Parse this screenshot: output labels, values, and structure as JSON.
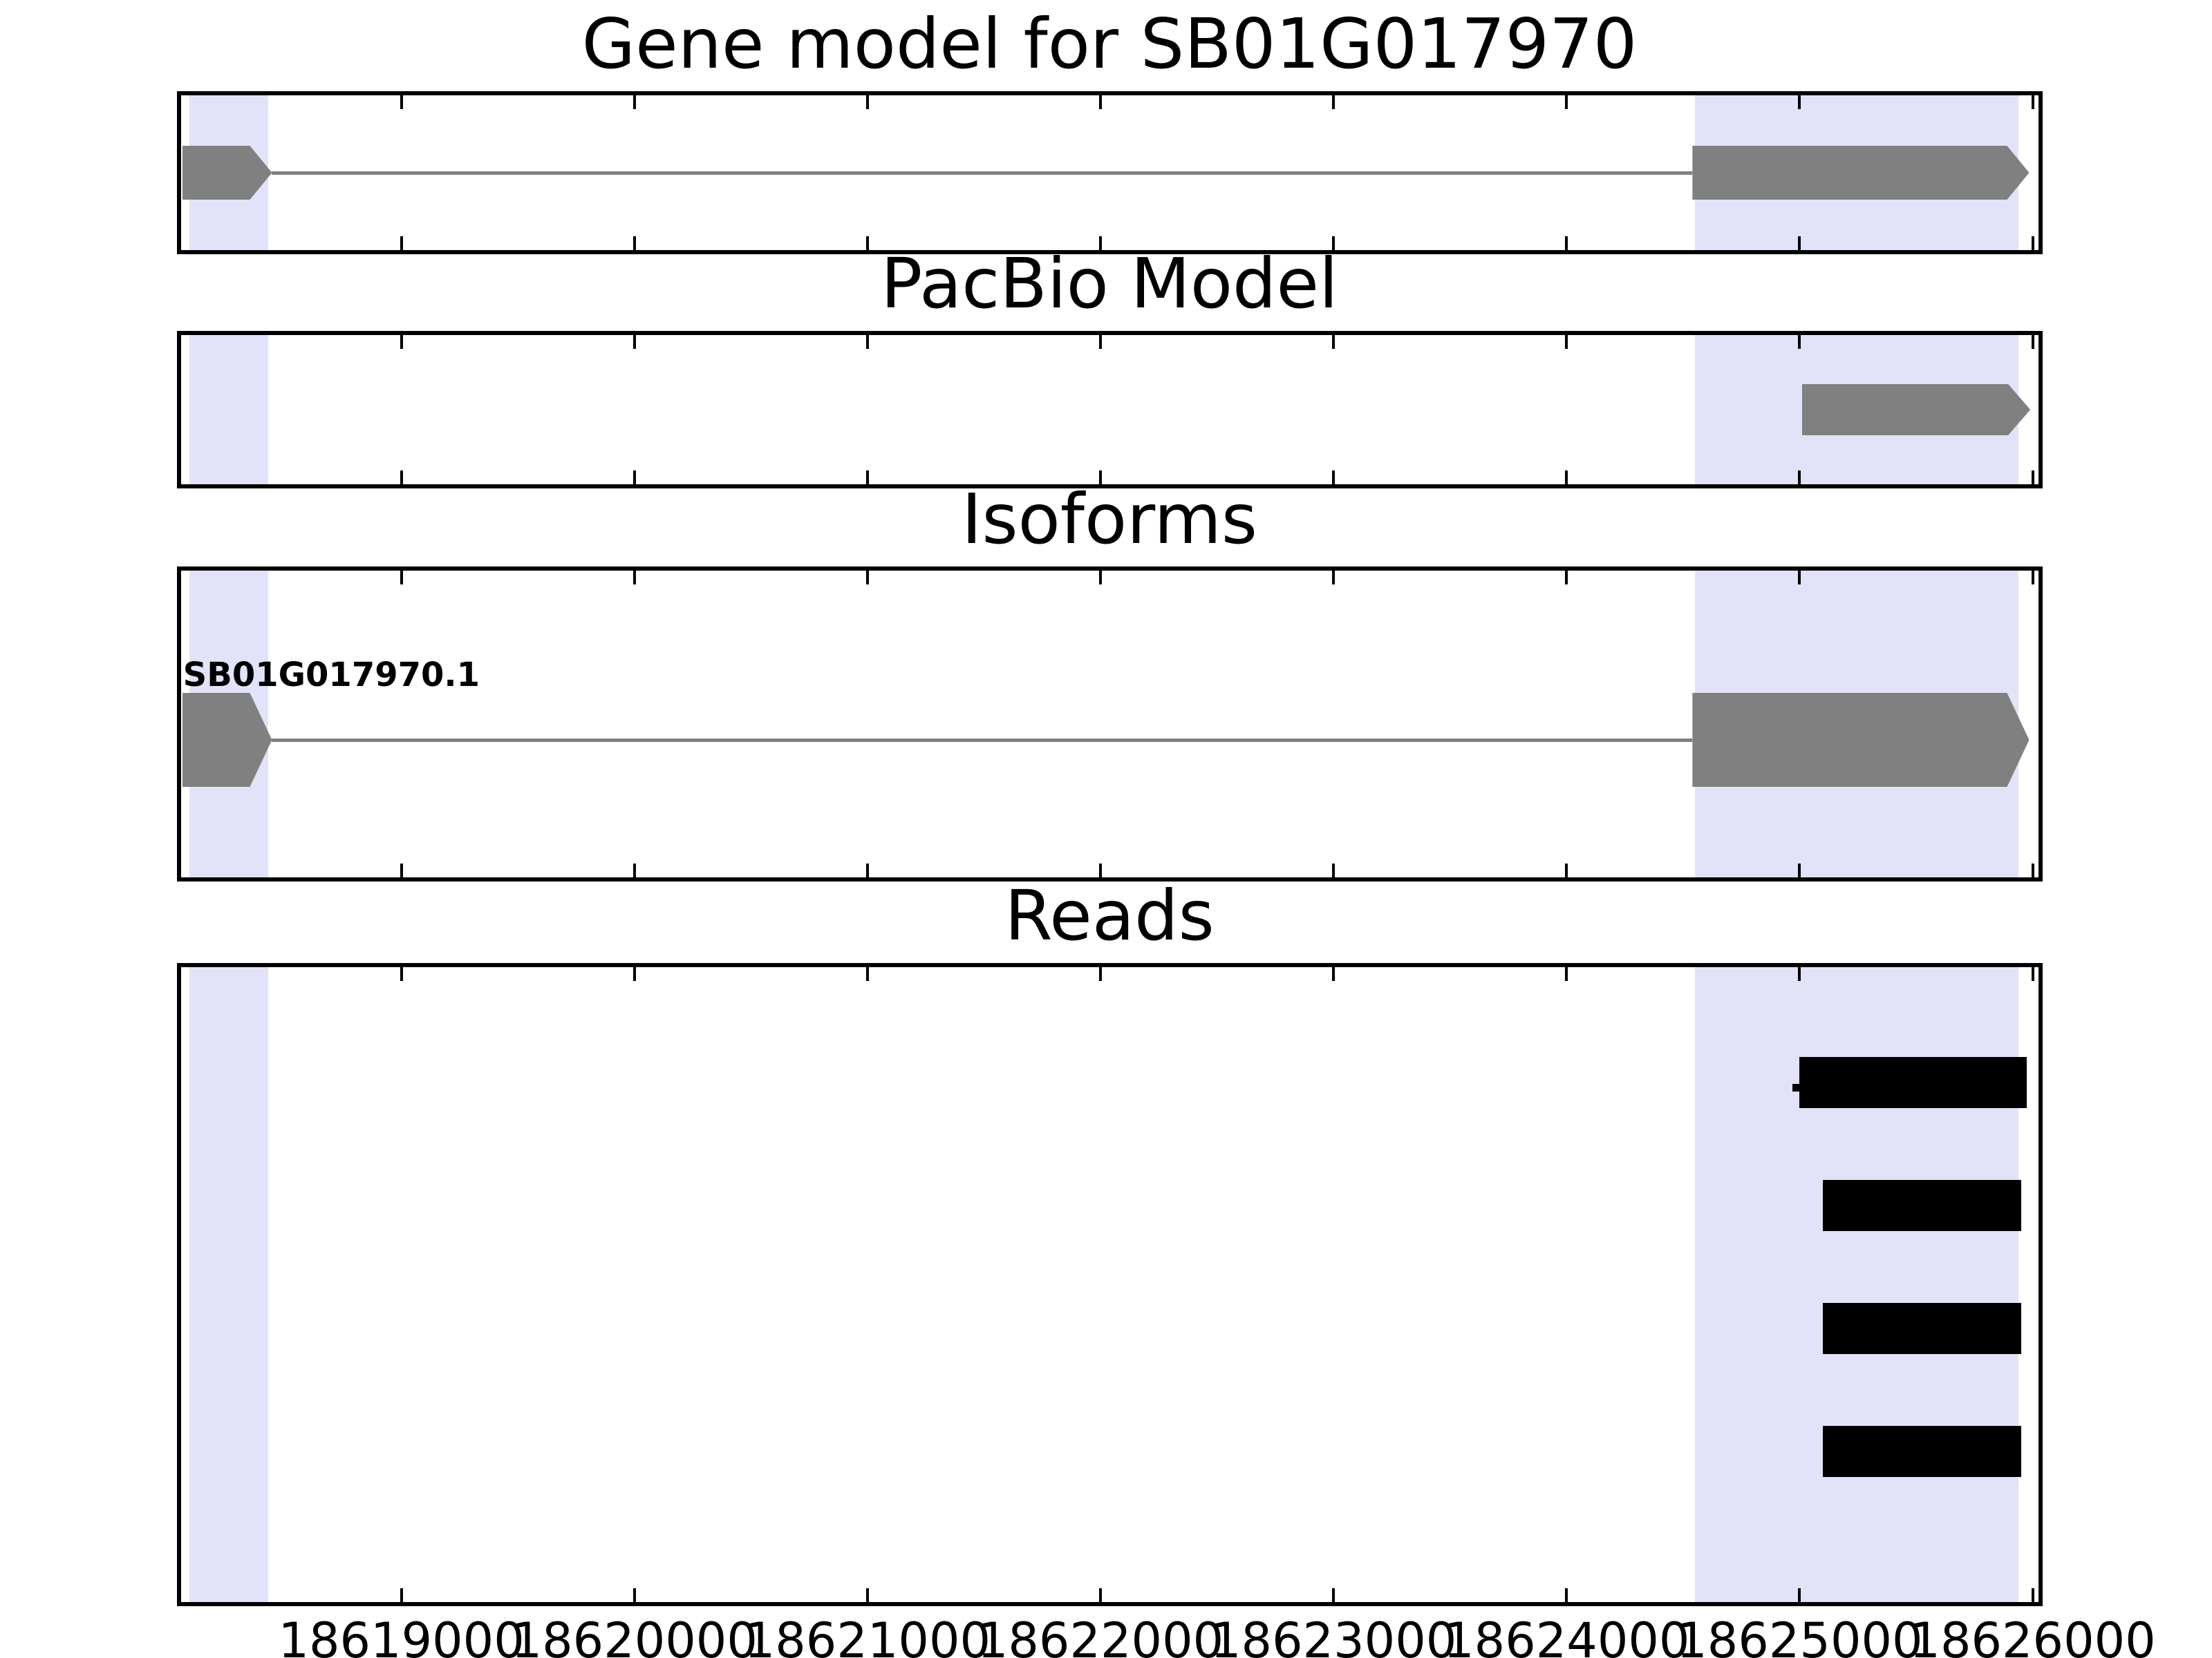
{
  "colors": {
    "exon": "#808080",
    "intron_line": "#808080",
    "read": "#000000",
    "highlight": "#e2e2f8",
    "panel_border": "#000000",
    "text": "#000000",
    "background": "#ffffff"
  },
  "chart_data": {
    "type": "genome-browser-tracks",
    "title": "Gene model for SB01G017970",
    "x_axis": {
      "range": [
        18618055,
        18626025
      ],
      "tick_values": [
        18619000,
        18620000,
        18621000,
        18622000,
        18623000,
        18624000,
        18625000,
        18626000
      ],
      "tick_labels": [
        "18619000",
        "18620000",
        "18621000",
        "18622000",
        "18623000",
        "18624000",
        "18625000",
        "18626000"
      ],
      "grid": false
    },
    "highlight_regions": [
      {
        "start": 18618090,
        "end": 18618430
      },
      {
        "start": 18624550,
        "end": 18625940
      }
    ],
    "tracks": [
      {
        "name": "gene_model",
        "title": "Gene model for SB01G017970",
        "type": "gene",
        "strand": "+",
        "exons": [
          [
            18618060,
            18618445
          ],
          [
            18624540,
            18625985
          ]
        ]
      },
      {
        "name": "pacbio_model",
        "title": "PacBio Model",
        "type": "gene",
        "strand": "+",
        "exons": [
          [
            18625010,
            18625990
          ]
        ]
      },
      {
        "name": "isoforms",
        "title": "Isoforms",
        "type": "gene",
        "strand": "+",
        "label": "SB01G017970.1",
        "exons": [
          [
            18618060,
            18618445
          ],
          [
            18624540,
            18625985
          ]
        ]
      },
      {
        "name": "reads",
        "title": "Reads",
        "type": "reads",
        "reads": [
          {
            "start": 18625000,
            "end": 18625975,
            "start_nub": true
          },
          {
            "start": 18625100,
            "end": 18625950,
            "start_nub": false
          },
          {
            "start": 18625100,
            "end": 18625950,
            "start_nub": false
          },
          {
            "start": 18625100,
            "end": 18625950,
            "start_nub": false
          }
        ]
      }
    ]
  }
}
